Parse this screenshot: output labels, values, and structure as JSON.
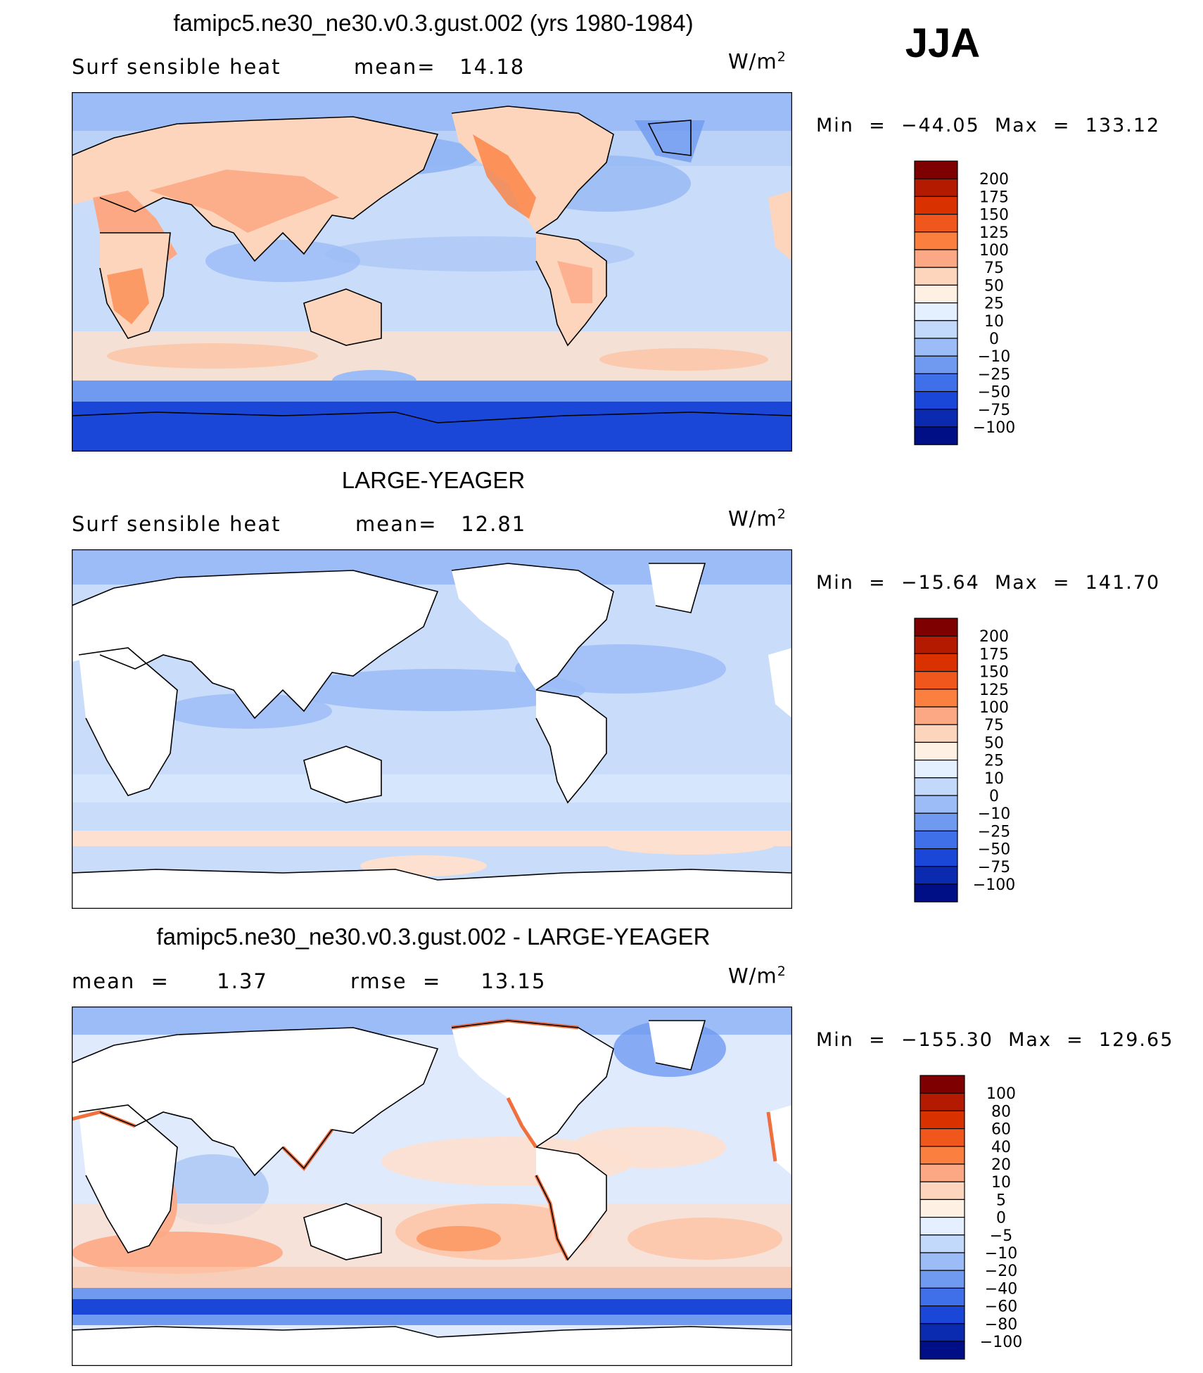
{
  "season": "JJA",
  "panels": [
    {
      "title": "famipc5.ne30_ne30.v0.3.gust.002 (yrs 1980-1984)",
      "left_label": "Surf  sensible  heat",
      "right_label": "mean=   14.18",
      "units": "W/m",
      "units_sup": "2",
      "minmax": "Min  =  −44.05  Max  =  133.12",
      "colorbar": {
        "labels": [
          "200",
          "175",
          "150",
          "125",
          "100",
          "75",
          "50",
          "25",
          "10",
          "0",
          "−10",
          "−25",
          "−50",
          "−75",
          "−100"
        ],
        "colors": [
          "#7f0000",
          "#b31a00",
          "#d93200",
          "#f0571c",
          "#fb8040",
          "#fca884",
          "#fdd5bd",
          "#fff0e4",
          "#e4f0ff",
          "#c3d9fb",
          "#9bbcf6",
          "#6f9af0",
          "#3f70ea",
          "#1b47d9",
          "#0a2ab0",
          "#000f85"
        ]
      }
    },
    {
      "title": "LARGE-YEAGER",
      "left_label": "Surf  sensible  heat",
      "right_label": "mean=   12.81",
      "units": "W/m",
      "units_sup": "2",
      "minmax": "Min  =  −15.64  Max  =  141.70",
      "colorbar": {
        "labels": [
          "200",
          "175",
          "150",
          "125",
          "100",
          "75",
          "50",
          "25",
          "10",
          "0",
          "−10",
          "−25",
          "−50",
          "−75",
          "−100"
        ],
        "colors": [
          "#7f0000",
          "#b31a00",
          "#d93200",
          "#f0571c",
          "#fb8040",
          "#fca884",
          "#fdd5bd",
          "#fff0e4",
          "#e4f0ff",
          "#c3d9fb",
          "#9bbcf6",
          "#6f9af0",
          "#3f70ea",
          "#1b47d9",
          "#0a2ab0",
          "#000f85"
        ]
      }
    },
    {
      "title": "famipc5.ne30_ne30.v0.3.gust.002 - LARGE-YEAGER",
      "left_label": "mean  =      1.37",
      "right_label": "rmse  =     13.15",
      "units": "W/m",
      "units_sup": "2",
      "minmax": "Min  =  −155.30  Max  =  129.65",
      "colorbar": {
        "labels": [
          "100",
          "80",
          "60",
          "40",
          "20",
          "10",
          "5",
          "0",
          "−5",
          "−10",
          "−20",
          "−40",
          "−60",
          "−80",
          "−100"
        ],
        "colors": [
          "#7f0000",
          "#b31a00",
          "#d93200",
          "#f0571c",
          "#fb8040",
          "#fca884",
          "#fdd5bd",
          "#fff0e4",
          "#e4f0ff",
          "#c3d9fb",
          "#9bbcf6",
          "#6f9af0",
          "#3f70ea",
          "#1b47d9",
          "#0a2ab0",
          "#000f85"
        ]
      }
    }
  ]
}
